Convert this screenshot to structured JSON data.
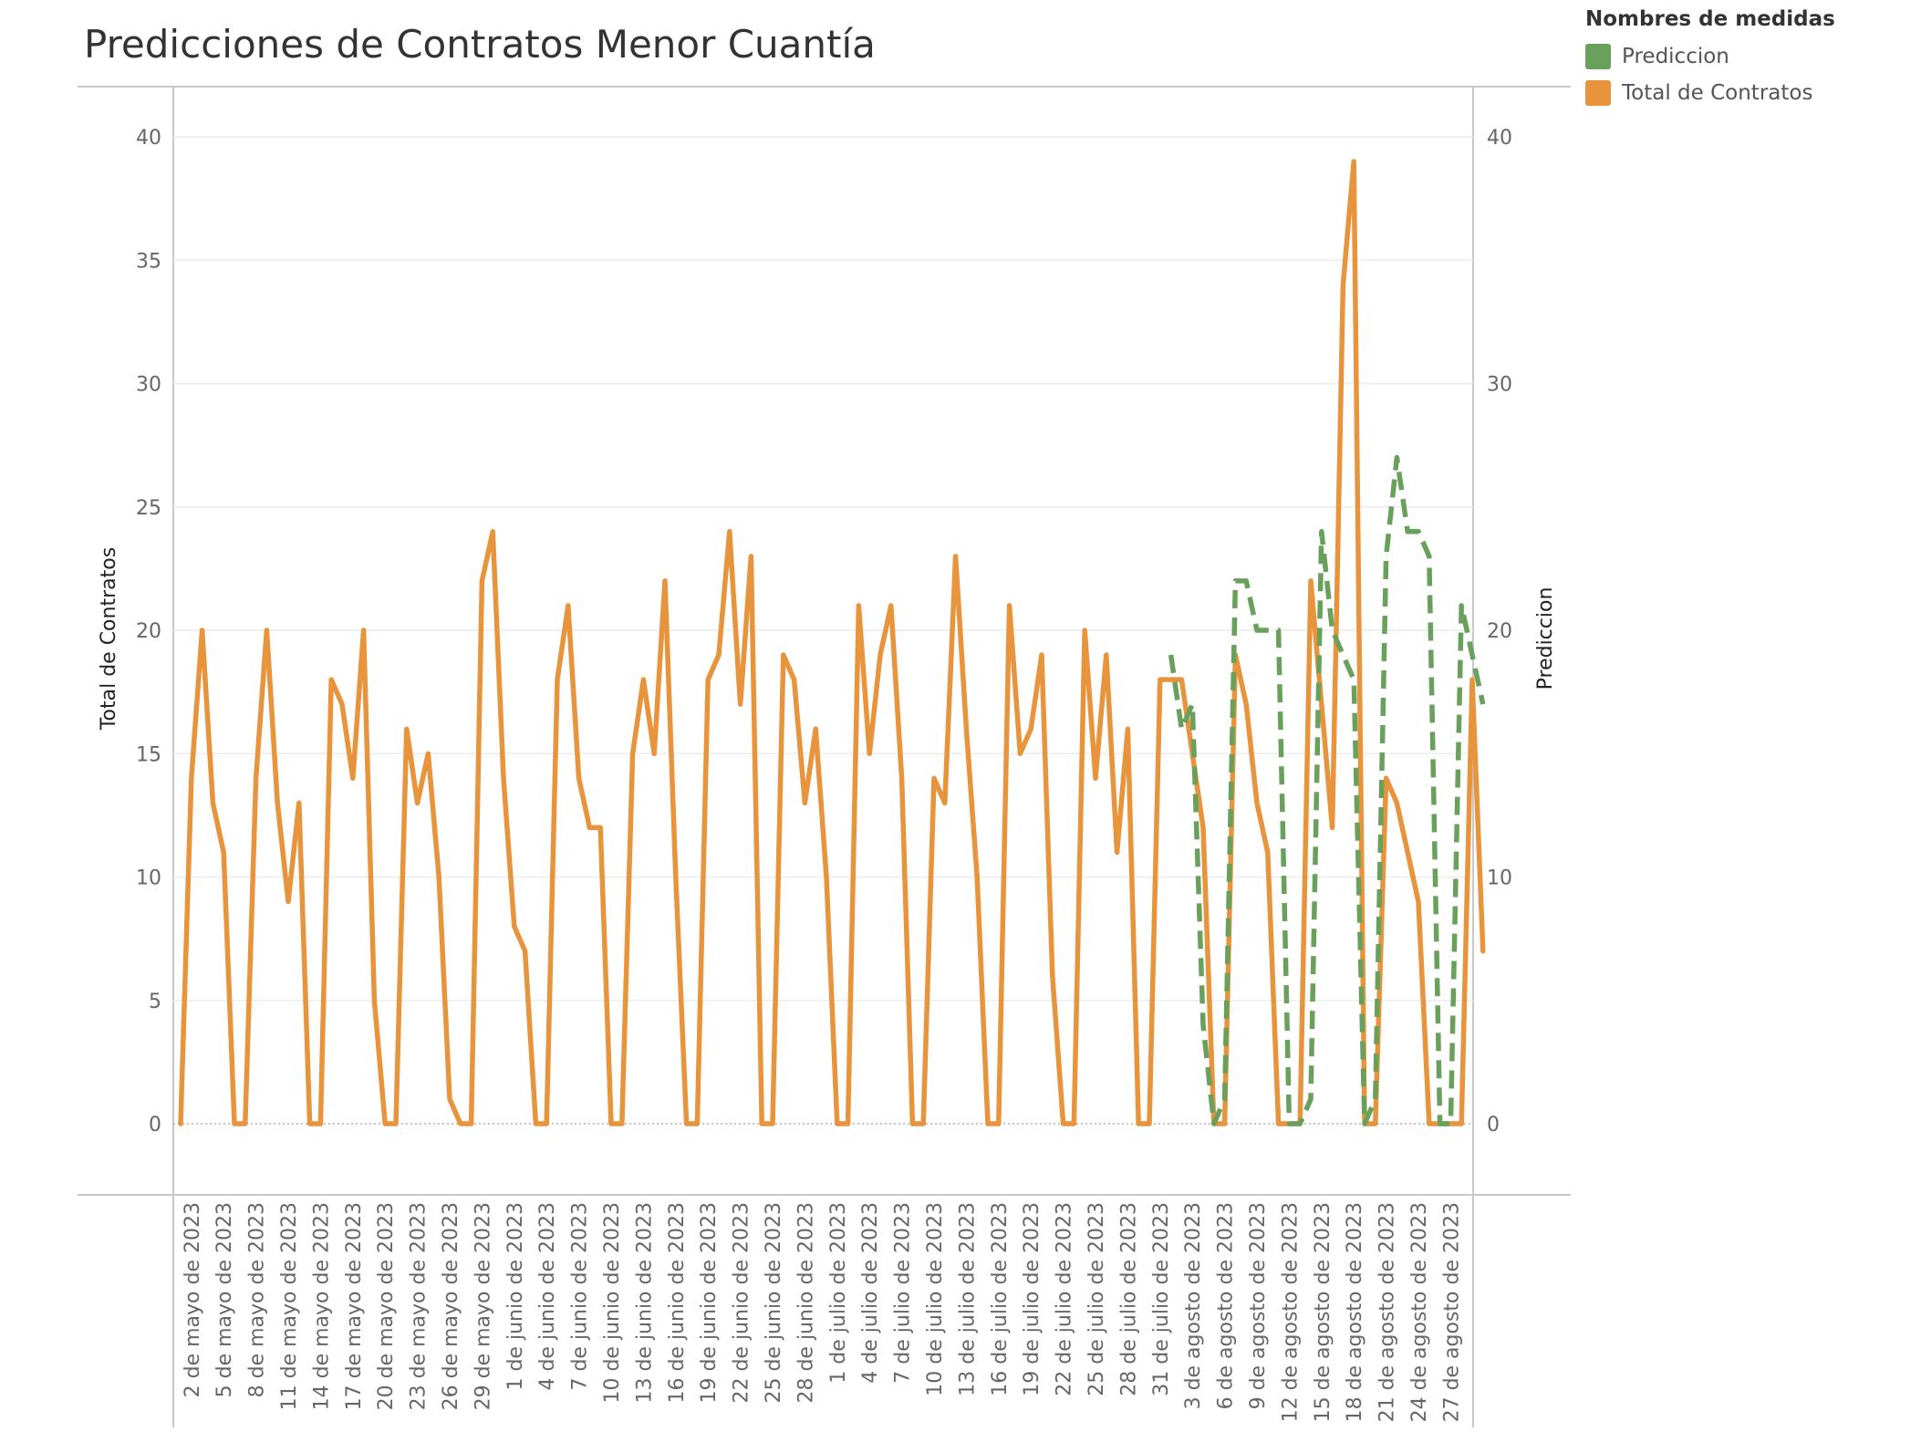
{
  "chart_data": {
    "type": "line",
    "title": "Predicciones de Contratos Menor Cuantía",
    "ylabel": "Total de Contratos",
    "y2label": "Prediccion",
    "ylim": [
      -3,
      42
    ],
    "yticks": [
      0,
      5,
      10,
      15,
      20,
      25,
      30,
      35,
      40
    ],
    "y2ticks": [
      0,
      10,
      20,
      30,
      40
    ],
    "grid": true,
    "legend": {
      "title": "Nombres de medidas",
      "placement": "top-right",
      "entries": [
        {
          "name": "Prediccion",
          "color": "#69a05c"
        },
        {
          "name": "Total de Contratos",
          "color": "#e8943d"
        }
      ]
    },
    "x_start": "2023-05-01",
    "x_tick_labels": [
      "2 de mayo de 2023",
      "5 de mayo de 2023",
      "8 de mayo de 2023",
      "11 de mayo de 2023",
      "14 de mayo de 2023",
      "17 de mayo de 2023",
      "20 de mayo de 2023",
      "23 de mayo de 2023",
      "26 de mayo de 2023",
      "29 de mayo de 2023",
      "1 de junio de 2023",
      "4 de junio de 2023",
      "7 de junio de 2023",
      "10 de junio de 2023",
      "13 de junio de 2023",
      "16 de junio de 2023",
      "19 de junio de 2023",
      "22 de junio de 2023",
      "25 de junio de 2023",
      "28 de junio de 2023",
      "1 de julio de 2023",
      "4 de julio de 2023",
      "7 de julio de 2023",
      "10 de julio de 2023",
      "13 de julio de 2023",
      "16 de julio de 2023",
      "19 de julio de 2023",
      "22 de julio de 2023",
      "25 de julio de 2023",
      "28 de julio de 2023",
      "31 de julio de 2023",
      "3 de agosto de 2023",
      "6 de agosto de 2023",
      "9 de agosto de 2023",
      "12 de agosto de 2023",
      "15 de agosto de 2023",
      "18 de agosto de 2023",
      "21 de agosto de 2023",
      "24 de agosto de 2023",
      "27 de agosto de 2023"
    ],
    "series": [
      {
        "name": "Total de Contratos",
        "color": "#e8943d",
        "style": "solid",
        "values": [
          0,
          14,
          20,
          13,
          11,
          0,
          0,
          14,
          20,
          13,
          9,
          13,
          0,
          0,
          18,
          17,
          14,
          20,
          5,
          0,
          0,
          16,
          13,
          15,
          10,
          1,
          0,
          0,
          22,
          24,
          14,
          8,
          7,
          0,
          0,
          18,
          21,
          14,
          12,
          12,
          0,
          0,
          15,
          18,
          15,
          22,
          10,
          0,
          0,
          18,
          19,
          24,
          17,
          23,
          0,
          0,
          19,
          18,
          13,
          16,
          10,
          0,
          0,
          21,
          15,
          19,
          21,
          14,
          0,
          0,
          14,
          13,
          23,
          16,
          10,
          0,
          0,
          21,
          15,
          16,
          19,
          6,
          0,
          0,
          20,
          14,
          19,
          11,
          16,
          0,
          0,
          18,
          18,
          18,
          15,
          12,
          0,
          0,
          19,
          17,
          13,
          11,
          0,
          0,
          0,
          22,
          17,
          12,
          34,
          39,
          0,
          0,
          14,
          13,
          11,
          9,
          0,
          0,
          0,
          0,
          18,
          7
        ]
      },
      {
        "name": "Prediccion",
        "color": "#69a05c",
        "style": "dashed",
        "start_index": 92,
        "values": [
          19,
          16,
          17,
          4,
          0,
          1,
          22,
          22,
          20,
          20,
          20,
          0,
          0,
          1,
          24,
          20,
          19,
          18,
          0,
          1,
          23,
          27,
          24,
          24,
          23,
          0,
          0,
          21,
          19,
          17
        ]
      }
    ]
  }
}
